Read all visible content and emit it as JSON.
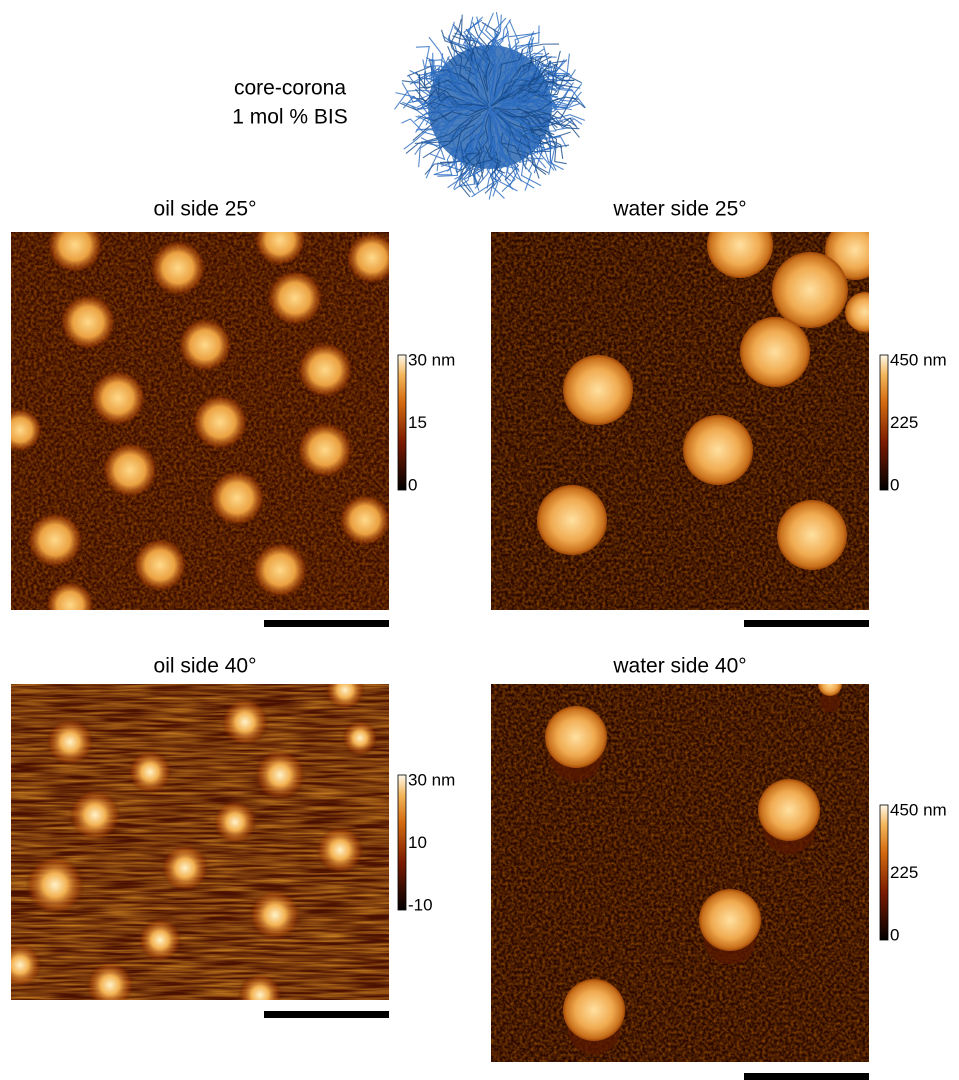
{
  "header": {
    "label_lines": [
      "core-corona",
      "1 mol % BIS"
    ]
  },
  "panels": [
    {
      "title": "oil side 25°",
      "colorbar_ticks": [
        "30 nm",
        "15",
        "0"
      ]
    },
    {
      "title": "water side 25°",
      "colorbar_ticks": [
        "450 nm",
        "225",
        "0"
      ]
    },
    {
      "title": "oil side 40°",
      "colorbar_ticks": [
        "30 nm",
        "10",
        "-10"
      ]
    },
    {
      "title": "water side 40°",
      "colorbar_ticks": [
        "450 nm",
        "225",
        "0"
      ]
    }
  ]
}
